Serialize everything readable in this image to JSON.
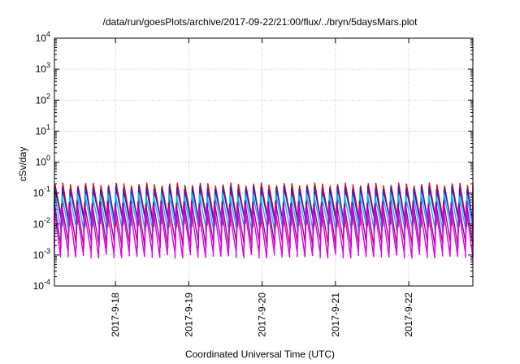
{
  "chart_data": {
    "type": "line",
    "title": "/data/run/goesPlots/archive/2017-09-22/21:00/flux/../bryn/5daysMars.plot",
    "xlabel": "Coordinated Universal Time (UTC)",
    "ylabel": "cSv/day",
    "yscale": "log",
    "ylim": [
      0.0001,
      10000
    ],
    "ytick_labels": [
      {
        "base": "10",
        "exp": "-4"
      },
      {
        "base": "10",
        "exp": "-3"
      },
      {
        "base": "10",
        "exp": "-2"
      },
      {
        "base": "10",
        "exp": "-1"
      },
      {
        "base": "10",
        "exp": "0"
      },
      {
        "base": "10",
        "exp": "1"
      },
      {
        "base": "10",
        "exp": "2"
      },
      {
        "base": "10",
        "exp": "3"
      },
      {
        "base": "10",
        "exp": "4"
      }
    ],
    "xlim": [
      "2017-09-17T04:00",
      "2017-09-22T21:00"
    ],
    "xticks": [
      "2017-9-18",
      "2017-9-19",
      "2017-9-20",
      "2017-9-21",
      "2017-9-22"
    ],
    "grid": true,
    "sawtooth_period_days": 0.1042,
    "series": [
      {
        "color": "#ee0000",
        "peak": 0.19,
        "trough": 0.01
      },
      {
        "color": "#2222dd",
        "peak": 0.15,
        "trough": 0.011
      },
      {
        "color": "#00bbee",
        "peak": 0.09,
        "trough": 0.006
      },
      {
        "color": "#a000a0",
        "peak": 0.05,
        "trough": 0.0021
      },
      {
        "color": "#dd00dd",
        "peak": 0.035,
        "trough": 0.001
      }
    ]
  }
}
